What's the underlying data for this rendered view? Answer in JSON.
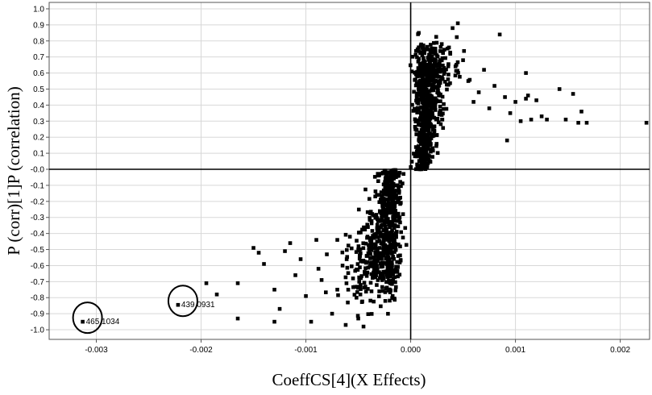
{
  "chart_data": {
    "type": "scatter",
    "title": "",
    "xlabel": "CoeffCS[4](X Effects)",
    "ylabel": "P (corr)[1]P (correlation)",
    "xlim": [
      -0.00345,
      0.00228
    ],
    "ylim": [
      -1.06,
      1.04
    ],
    "x_ticks": [
      -0.003,
      -0.002,
      -0.001,
      0.0,
      0.001,
      0.002
    ],
    "x_tick_labels": [
      "-0.003",
      "-0.002",
      "-0.001",
      "0.000",
      "0.001",
      "0.002"
    ],
    "y_ticks": [
      -1.0,
      -0.9,
      -0.8,
      -0.7,
      -0.6,
      -0.5,
      -0.4,
      -0.3,
      -0.2,
      -0.1,
      0.0,
      0.1,
      0.2,
      0.3,
      0.4,
      0.5,
      0.6,
      0.7,
      0.8,
      0.9,
      1.0
    ],
    "y_tick_labels": [
      "-1.0",
      "-0.9",
      "-0.8",
      "-0.7",
      "-0.6",
      "-0.5",
      "-0.4",
      "-0.3",
      "-0.2",
      "-0.1",
      "-0.0",
      "0.1",
      "0.2",
      "0.3",
      "0.4",
      "0.5",
      "0.6",
      "0.7",
      "0.8",
      "0.9",
      "1.0"
    ],
    "grid": true,
    "reference_lines": {
      "x": 0.0,
      "y": 0.0
    },
    "series": [
      {
        "points": [
          [
            -0.00313,
            -0.95
          ],
          [
            -0.00222,
            -0.845
          ],
          [
            -0.00195,
            -0.71
          ],
          [
            -0.00185,
            -0.78
          ],
          [
            -0.00165,
            -0.71
          ],
          [
            -0.00165,
            -0.93
          ],
          [
            -0.0015,
            -0.49
          ],
          [
            -0.00145,
            -0.52
          ],
          [
            -0.0014,
            -0.59
          ],
          [
            -0.0013,
            -0.75
          ],
          [
            -0.0013,
            -0.95
          ],
          [
            -0.00125,
            -0.87
          ],
          [
            -0.0012,
            -0.51
          ],
          [
            -0.00115,
            -0.46
          ],
          [
            -0.0011,
            -0.66
          ],
          [
            -0.00105,
            -0.56
          ],
          [
            -0.001,
            -0.79
          ],
          [
            -0.00095,
            -0.95
          ],
          [
            -0.0009,
            -0.44
          ],
          [
            -0.00088,
            -0.62
          ],
          [
            -0.00085,
            -0.69
          ],
          [
            -0.0008,
            -0.53
          ],
          [
            -0.00075,
            -0.9
          ],
          [
            -0.0007,
            -0.44
          ],
          [
            -0.0007,
            -0.75
          ],
          [
            -0.00065,
            -0.6
          ],
          [
            -0.00062,
            -0.97
          ],
          [
            -0.0006,
            -0.83
          ],
          [
            -0.00058,
            -0.42
          ],
          [
            -0.00055,
            -0.68
          ],
          [
            -0.0005,
            -0.93
          ],
          [
            -0.0005,
            -0.5
          ],
          [
            -0.00048,
            -0.78
          ],
          [
            -0.00045,
            -0.98
          ],
          [
            0.0004,
            0.88
          ],
          [
            0.00045,
            0.91
          ],
          [
            0.0005,
            0.68
          ],
          [
            0.00055,
            0.55
          ],
          [
            0.0006,
            0.42
          ],
          [
            0.00065,
            0.48
          ],
          [
            0.0007,
            0.62
          ],
          [
            0.00075,
            0.38
          ],
          [
            0.0008,
            0.52
          ],
          [
            0.00085,
            0.84
          ],
          [
            0.0009,
            0.45
          ],
          [
            0.00092,
            0.18
          ],
          [
            0.00095,
            0.35
          ],
          [
            0.001,
            0.42
          ],
          [
            0.00105,
            0.3
          ],
          [
            0.0011,
            0.44
          ],
          [
            0.0011,
            0.6
          ],
          [
            0.00112,
            0.46
          ],
          [
            0.00115,
            0.31
          ],
          [
            0.0012,
            0.43
          ],
          [
            0.00125,
            0.33
          ],
          [
            0.0013,
            0.31
          ],
          [
            0.00142,
            0.5
          ],
          [
            0.00148,
            0.31
          ],
          [
            0.00155,
            0.47
          ],
          [
            0.0016,
            0.29
          ],
          [
            0.00163,
            0.36
          ],
          [
            0.00168,
            0.29
          ],
          [
            0.00225,
            0.29
          ]
        ]
      }
    ],
    "annotations": [
      {
        "text": "465.1034",
        "x": -0.00313,
        "y": -0.95,
        "circled": true
      },
      {
        "text": "439.0931",
        "x": -0.00222,
        "y": -0.845,
        "circled": true
      }
    ]
  }
}
